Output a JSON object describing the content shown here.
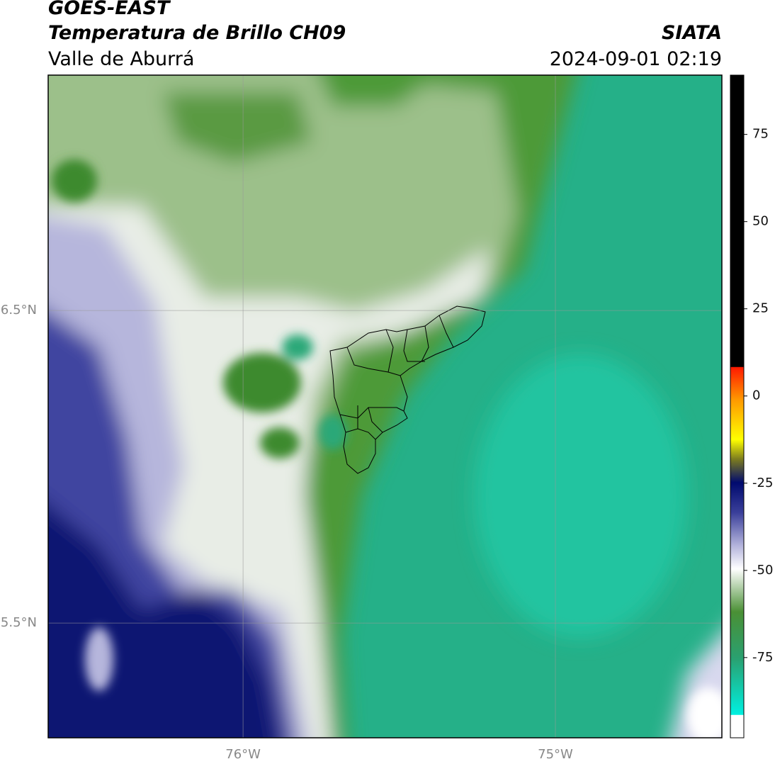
{
  "header": {
    "title": "GOES-EAST",
    "subtitle": "Temperatura de Brillo CH09",
    "region": "Valle de Aburrá",
    "source": "SIATA",
    "datetime": "2024-09-01 02:19"
  },
  "map": {
    "extent": {
      "lon": [
        -76.624,
        -74.467
      ],
      "lat": [
        5.133,
        7.253
      ]
    },
    "lon_lines": [
      {
        "value": -76,
        "label": "76°W"
      },
      {
        "value": -75,
        "label": "75°W"
      }
    ],
    "lat_lines": [
      {
        "value": 6.5,
        "label": "6.5°N"
      },
      {
        "value": 5.5,
        "label": "5.5°N"
      }
    ]
  },
  "colorbar": {
    "range": [
      -98,
      92
    ],
    "ticks": [
      75,
      50,
      25,
      0,
      -25,
      -50,
      -75
    ]
  }
}
